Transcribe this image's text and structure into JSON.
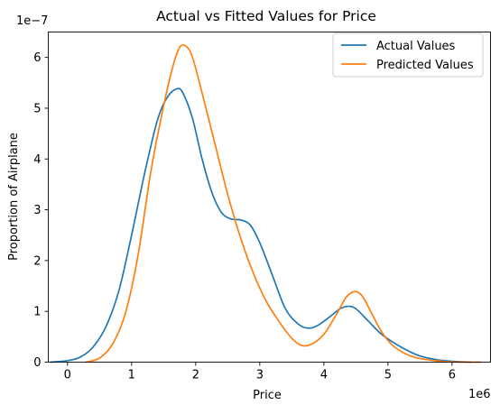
{
  "chart_data": {
    "type": "line",
    "title": "Actual vs Fitted Values for Price",
    "xlabel": "Price",
    "ylabel": "Proportion of Airplane",
    "x_offset_text": "1e6",
    "y_offset_text": "1e−7",
    "xlim": [
      -0.3,
      6.6
    ],
    "ylim": [
      0,
      6.5
    ],
    "x_ticks": [
      0,
      1,
      2,
      3,
      4,
      5,
      6
    ],
    "x_tick_labels": [
      "0",
      "1",
      "2",
      "3",
      "4",
      "5",
      "6"
    ],
    "y_ticks": [
      0,
      1,
      2,
      3,
      4,
      5,
      6
    ],
    "y_tick_labels": [
      "0",
      "1",
      "2",
      "3",
      "4",
      "5",
      "6"
    ],
    "grid": false,
    "legend_position": "upper right",
    "series": [
      {
        "name": "Actual Values",
        "color": "#1f77b4",
        "points": [
          [
            -0.27,
            0.0
          ],
          [
            0.0,
            0.03
          ],
          [
            0.2,
            0.1
          ],
          [
            0.4,
            0.3
          ],
          [
            0.6,
            0.7
          ],
          [
            0.8,
            1.4
          ],
          [
            1.0,
            2.5
          ],
          [
            1.2,
            3.7
          ],
          [
            1.4,
            4.75
          ],
          [
            1.55,
            5.2
          ],
          [
            1.7,
            5.38
          ],
          [
            1.8,
            5.3
          ],
          [
            1.95,
            4.8
          ],
          [
            2.1,
            4.0
          ],
          [
            2.25,
            3.35
          ],
          [
            2.4,
            2.95
          ],
          [
            2.55,
            2.82
          ],
          [
            2.7,
            2.8
          ],
          [
            2.85,
            2.7
          ],
          [
            3.0,
            2.35
          ],
          [
            3.2,
            1.7
          ],
          [
            3.4,
            1.05
          ],
          [
            3.6,
            0.75
          ],
          [
            3.75,
            0.67
          ],
          [
            3.9,
            0.72
          ],
          [
            4.1,
            0.9
          ],
          [
            4.25,
            1.05
          ],
          [
            4.38,
            1.1
          ],
          [
            4.5,
            1.05
          ],
          [
            4.7,
            0.8
          ],
          [
            4.9,
            0.55
          ],
          [
            5.2,
            0.3
          ],
          [
            5.5,
            0.12
          ],
          [
            5.8,
            0.04
          ],
          [
            6.1,
            0.01
          ],
          [
            6.3,
            0.0
          ]
        ]
      },
      {
        "name": "Predicted Values",
        "color": "#ff7f0e",
        "points": [
          [
            0.28,
            0.0
          ],
          [
            0.5,
            0.08
          ],
          [
            0.7,
            0.35
          ],
          [
            0.9,
            0.95
          ],
          [
            1.1,
            2.1
          ],
          [
            1.3,
            3.75
          ],
          [
            1.5,
            5.05
          ],
          [
            1.65,
            5.85
          ],
          [
            1.75,
            6.2
          ],
          [
            1.85,
            6.22
          ],
          [
            1.95,
            6.0
          ],
          [
            2.1,
            5.3
          ],
          [
            2.3,
            4.3
          ],
          [
            2.5,
            3.3
          ],
          [
            2.7,
            2.45
          ],
          [
            2.9,
            1.75
          ],
          [
            3.1,
            1.2
          ],
          [
            3.3,
            0.8
          ],
          [
            3.5,
            0.47
          ],
          [
            3.65,
            0.33
          ],
          [
            3.8,
            0.35
          ],
          [
            4.0,
            0.55
          ],
          [
            4.2,
            0.95
          ],
          [
            4.35,
            1.28
          ],
          [
            4.48,
            1.39
          ],
          [
            4.6,
            1.3
          ],
          [
            4.75,
            0.95
          ],
          [
            4.9,
            0.6
          ],
          [
            5.1,
            0.3
          ],
          [
            5.4,
            0.1
          ],
          [
            5.8,
            0.02
          ],
          [
            6.2,
            0.0
          ],
          [
            6.45,
            0.0
          ]
        ]
      }
    ]
  }
}
